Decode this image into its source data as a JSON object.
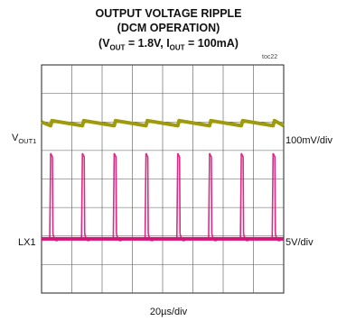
{
  "chart_data": {
    "type": "line",
    "title_line1": "OUTPUT VOLTAGE RIPPLE",
    "title_line2": "(DCM OPERATION)",
    "conditions": {
      "vout_label": "V",
      "vout_sub": "OUT",
      "vout_value": " = 1.8V, ",
      "iout_label": "I",
      "iout_sub": "OUT",
      "iout_value": " = 100mA)"
    },
    "figure_id": "toc22",
    "time_scale": "20µs/div",
    "grid": {
      "h_divisions": 8,
      "v_divisions": 8,
      "on": true
    },
    "series": [
      {
        "name_main": "V",
        "name_sub": "OUT1",
        "scale": "100mV/div",
        "color": "#9e9a0c",
        "baseline_div": 2.05,
        "ripple_div": 0.16,
        "period_div": 1.05,
        "first_pulse_div": 0.3
      },
      {
        "name_main": "LX1",
        "name_sub": "",
        "scale": "5V/div",
        "color": "#d4167a",
        "baseline_div": 6.1,
        "pulse_height_div": 3.0,
        "period_div": 1.05,
        "first_pulse_div": 0.3
      }
    ]
  }
}
